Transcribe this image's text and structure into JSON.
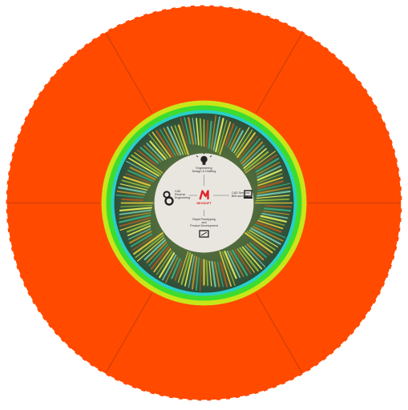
{
  "colors": {
    "disc": "#ff4a00",
    "disc_edge": "#e04000",
    "segment_line": "#b83a10",
    "ring_green": "#3ddc2f",
    "ring_yellow": "#c8e619",
    "ring_cyan": "#28d0c8",
    "center": "#e9e6df",
    "text": "#333333",
    "logo": "#e0262c"
  },
  "center": {
    "top": {
      "icon": "lightbulb-icon",
      "line1": "Engineering",
      "line2": "Design & Drafting"
    },
    "left": {
      "icon": "gears-icon",
      "line1": "CAE",
      "line2": "Reverse",
      "line3": "Engineering"
    },
    "right": {
      "icon": "monitor-icon",
      "line1": "CAD Services",
      "line2": "BIM services"
    },
    "bottom": {
      "icon": "tablet-icon",
      "line1": "Rapid Prototyping",
      "line2": "and",
      "line3": "Product Development"
    },
    "logo": {
      "icon": "neosoft-logo-icon",
      "text": "NEOSOFT"
    }
  }
}
